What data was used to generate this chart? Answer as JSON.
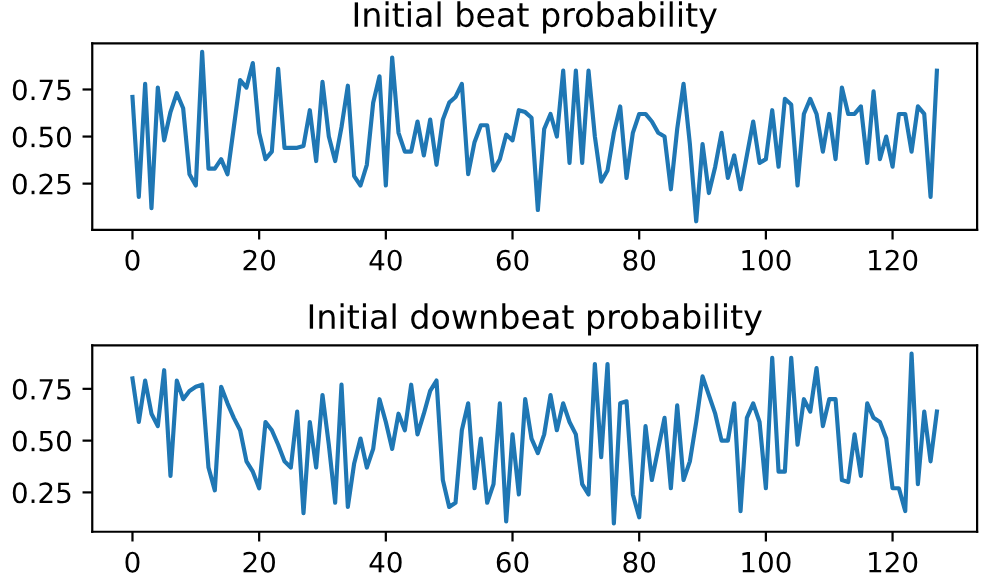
{
  "chart_data": [
    {
      "type": "line",
      "title": "Initial beat probability",
      "x": [
        0,
        1,
        2,
        3,
        4,
        5,
        6,
        7,
        8,
        9,
        10,
        11,
        12,
        13,
        14,
        15,
        16,
        17,
        18,
        19,
        20,
        21,
        22,
        23,
        24,
        25,
        26,
        27,
        28,
        29,
        30,
        31,
        32,
        33,
        34,
        35,
        36,
        37,
        38,
        39,
        40,
        41,
        42,
        43,
        44,
        45,
        46,
        47,
        48,
        49,
        50,
        51,
        52,
        53,
        54,
        55,
        56,
        57,
        58,
        59,
        60,
        61,
        62,
        63,
        64,
        65,
        66,
        67,
        68,
        69,
        70,
        71,
        72,
        73,
        74,
        75,
        76,
        77,
        78,
        79,
        80,
        81,
        82,
        83,
        84,
        85,
        86,
        87,
        88,
        89,
        90,
        91,
        92,
        93,
        94,
        95,
        96,
        97,
        98,
        99,
        100,
        101,
        102,
        103,
        104,
        105,
        106,
        107,
        108,
        109,
        110,
        111,
        112,
        113,
        114,
        115,
        116,
        117,
        118,
        119,
        120,
        121,
        122,
        123,
        124,
        125,
        126,
        127
      ],
      "series": [
        {
          "color": "#1f77b4",
          "values": [
            0.71,
            0.18,
            0.78,
            0.12,
            0.76,
            0.48,
            0.63,
            0.73,
            0.65,
            0.3,
            0.24,
            0.95,
            0.33,
            0.33,
            0.38,
            0.3,
            0.55,
            0.8,
            0.76,
            0.89,
            0.52,
            0.38,
            0.42,
            0.86,
            0.44,
            0.44,
            0.44,
            0.45,
            0.64,
            0.37,
            0.79,
            0.5,
            0.37,
            0.55,
            0.77,
            0.29,
            0.24,
            0.35,
            0.68,
            0.82,
            0.24,
            0.92,
            0.52,
            0.42,
            0.42,
            0.58,
            0.4,
            0.59,
            0.35,
            0.59,
            0.68,
            0.71,
            0.78,
            0.3,
            0.47,
            0.56,
            0.56,
            0.32,
            0.38,
            0.51,
            0.48,
            0.64,
            0.63,
            0.6,
            0.11,
            0.54,
            0.62,
            0.5,
            0.85,
            0.36,
            0.85,
            0.36,
            0.85,
            0.5,
            0.26,
            0.32,
            0.52,
            0.66,
            0.28,
            0.52,
            0.62,
            0.62,
            0.58,
            0.52,
            0.5,
            0.22,
            0.54,
            0.78,
            0.46,
            0.05,
            0.46,
            0.2,
            0.34,
            0.52,
            0.28,
            0.4,
            0.22,
            0.4,
            0.58,
            0.36,
            0.38,
            0.64,
            0.34,
            0.7,
            0.67,
            0.24,
            0.62,
            0.7,
            0.62,
            0.42,
            0.62,
            0.38,
            0.76,
            0.62,
            0.62,
            0.66,
            0.36,
            0.74,
            0.38,
            0.5,
            0.34,
            0.62,
            0.62,
            0.42,
            0.66,
            0.62,
            0.18,
            0.85
          ]
        }
      ],
      "xlim": [
        -6.35,
        133.35
      ],
      "ylim": [
        0.005,
        0.995
      ],
      "xticks": [
        0,
        20,
        40,
        60,
        80,
        100,
        120
      ],
      "yticks": [
        {
          "value": 0.25,
          "label": "0.25"
        },
        {
          "value": 0.5,
          "label": "0.50"
        },
        {
          "value": 0.75,
          "label": "0.75"
        }
      ],
      "grid": false,
      "legend": false
    },
    {
      "type": "line",
      "title": "Initial downbeat probability",
      "x": [
        0,
        1,
        2,
        3,
        4,
        5,
        6,
        7,
        8,
        9,
        10,
        11,
        12,
        13,
        14,
        15,
        16,
        17,
        18,
        19,
        20,
        21,
        22,
        23,
        24,
        25,
        26,
        27,
        28,
        29,
        30,
        31,
        32,
        33,
        34,
        35,
        36,
        37,
        38,
        39,
        40,
        41,
        42,
        43,
        44,
        45,
        46,
        47,
        48,
        49,
        50,
        51,
        52,
        53,
        54,
        55,
        56,
        57,
        58,
        59,
        60,
        61,
        62,
        63,
        64,
        65,
        66,
        67,
        68,
        69,
        70,
        71,
        72,
        73,
        74,
        75,
        76,
        77,
        78,
        79,
        80,
        81,
        82,
        83,
        84,
        85,
        86,
        87,
        88,
        89,
        90,
        91,
        92,
        93,
        94,
        95,
        96,
        97,
        98,
        99,
        100,
        101,
        102,
        103,
        104,
        105,
        106,
        107,
        108,
        109,
        110,
        111,
        112,
        113,
        114,
        115,
        116,
        117,
        118,
        119,
        120,
        121,
        122,
        123,
        124,
        125,
        126,
        127
      ],
      "series": [
        {
          "color": "#1f77b4",
          "values": [
            0.8,
            0.59,
            0.79,
            0.63,
            0.57,
            0.84,
            0.33,
            0.79,
            0.7,
            0.74,
            0.76,
            0.77,
            0.37,
            0.26,
            0.76,
            0.68,
            0.61,
            0.55,
            0.4,
            0.35,
            0.27,
            0.59,
            0.55,
            0.48,
            0.4,
            0.37,
            0.64,
            0.15,
            0.59,
            0.37,
            0.72,
            0.48,
            0.2,
            0.77,
            0.18,
            0.39,
            0.51,
            0.37,
            0.46,
            0.7,
            0.59,
            0.46,
            0.63,
            0.55,
            0.77,
            0.53,
            0.63,
            0.74,
            0.79,
            0.31,
            0.18,
            0.2,
            0.55,
            0.68,
            0.27,
            0.51,
            0.2,
            0.29,
            0.68,
            0.11,
            0.53,
            0.24,
            0.7,
            0.51,
            0.44,
            0.53,
            0.72,
            0.55,
            0.68,
            0.59,
            0.53,
            0.29,
            0.24,
            0.87,
            0.42,
            0.87,
            0.1,
            0.68,
            0.69,
            0.24,
            0.13,
            0.57,
            0.31,
            0.46,
            0.61,
            0.27,
            0.67,
            0.31,
            0.4,
            0.59,
            0.81,
            0.72,
            0.63,
            0.5,
            0.5,
            0.68,
            0.16,
            0.61,
            0.68,
            0.59,
            0.27,
            0.9,
            0.35,
            0.35,
            0.9,
            0.48,
            0.7,
            0.64,
            0.85,
            0.57,
            0.7,
            0.7,
            0.31,
            0.3,
            0.53,
            0.33,
            0.68,
            0.61,
            0.59,
            0.51,
            0.27,
            0.27,
            0.16,
            0.92,
            0.29,
            0.64,
            0.4,
            0.64
          ]
        }
      ],
      "xlim": [
        -6.35,
        133.35
      ],
      "ylim": [
        0.06,
        0.96
      ],
      "xticks": [
        0,
        20,
        40,
        60,
        80,
        100,
        120
      ],
      "yticks": [
        {
          "value": 0.25,
          "label": "0.25"
        },
        {
          "value": 0.5,
          "label": "0.50"
        },
        {
          "value": 0.75,
          "label": "0.75"
        }
      ],
      "grid": false,
      "legend": false
    }
  ]
}
